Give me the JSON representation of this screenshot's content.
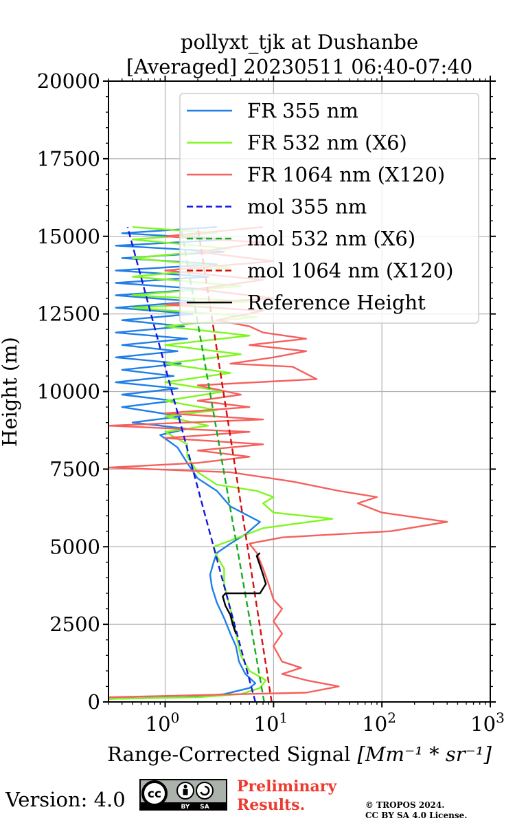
{
  "chart_data": {
    "type": "line",
    "title": "pollyxt_tjk at Dushanbe",
    "subtitle": "[Averaged] 20230511 06:40-07:40",
    "xlabel": "Range-Corrected Signal",
    "xlabel_unit": "[Mm⁻¹ * sr⁻¹]",
    "ylabel": "Height (m)",
    "xscale": "log",
    "xlim": [
      0.3,
      1000
    ],
    "ylim": [
      0,
      20000
    ],
    "x_ticks": [
      {
        "value": 1,
        "base": "10",
        "exp": "0"
      },
      {
        "value": 10,
        "base": "10",
        "exp": "1"
      },
      {
        "value": 100,
        "base": "10",
        "exp": "2"
      },
      {
        "value": 1000,
        "base": "10",
        "exp": "3"
      }
    ],
    "y_ticks": [
      0,
      2500,
      5000,
      7500,
      10000,
      12500,
      15000,
      17500,
      20000
    ],
    "grid": true,
    "legend_position": "top-right",
    "series": [
      {
        "name": "FR 355 nm",
        "color": "#1f7fe8",
        "style": "solid",
        "points": [
          [
            0.3,
            100
          ],
          [
            1.5,
            150
          ],
          [
            3.5,
            250
          ],
          [
            6,
            450
          ],
          [
            6.8,
            600
          ],
          [
            5.5,
            900
          ],
          [
            4.8,
            1300
          ],
          [
            4.5,
            1800
          ],
          [
            4,
            2200
          ],
          [
            3.5,
            2700
          ],
          [
            3,
            3200
          ],
          [
            2.7,
            3700
          ],
          [
            2.6,
            4100
          ],
          [
            2.8,
            4500
          ],
          [
            3,
            4800
          ],
          [
            4,
            5100
          ],
          [
            5.5,
            5400
          ],
          [
            7.5,
            5800
          ],
          [
            4,
            6300
          ],
          [
            3,
            6800
          ],
          [
            2,
            7200
          ],
          [
            1.6,
            7700
          ],
          [
            1.3,
            8200
          ],
          [
            0.9,
            8600
          ],
          [
            1.6,
            8800
          ],
          [
            0.5,
            9000
          ],
          [
            1.4,
            9200
          ],
          [
            0.4,
            9500
          ],
          [
            1.2,
            9700
          ],
          [
            0.4,
            9900
          ],
          [
            1.3,
            10100
          ],
          [
            0.35,
            10300
          ],
          [
            1.2,
            10500
          ],
          [
            0.4,
            10700
          ],
          [
            1.4,
            10900
          ],
          [
            0.35,
            11100
          ],
          [
            1.3,
            11300
          ],
          [
            0.4,
            11500
          ],
          [
            1.6,
            11700
          ],
          [
            0.35,
            11900
          ],
          [
            1.5,
            12100
          ],
          [
            0.4,
            12300
          ],
          [
            1.8,
            12500
          ],
          [
            0.35,
            12700
          ],
          [
            1.9,
            12900
          ],
          [
            0.35,
            13100
          ],
          [
            2.2,
            13300
          ],
          [
            0.35,
            13500
          ],
          [
            2.5,
            13700
          ],
          [
            0.35,
            13900
          ],
          [
            3,
            14100
          ],
          [
            0.4,
            14300
          ],
          [
            3.5,
            14500
          ],
          [
            0.35,
            14700
          ],
          [
            4,
            14900
          ],
          [
            0.4,
            15100
          ],
          [
            3,
            15300
          ]
        ]
      },
      {
        "name": "FR 532 nm (X6)",
        "color": "#7ef71e",
        "style": "solid",
        "points": [
          [
            0.3,
            100
          ],
          [
            2,
            150
          ],
          [
            5,
            250
          ],
          [
            7.5,
            450
          ],
          [
            8.5,
            700
          ],
          [
            6,
            1000
          ],
          [
            5,
            1500
          ],
          [
            4.5,
            2200
          ],
          [
            4.2,
            2700
          ],
          [
            3.8,
            3300
          ],
          [
            3.5,
            3800
          ],
          [
            3.5,
            4300
          ],
          [
            3,
            4700
          ],
          [
            2.8,
            5000
          ],
          [
            4,
            5200
          ],
          [
            8,
            5600
          ],
          [
            35,
            5900
          ],
          [
            10,
            6100
          ],
          [
            8,
            6400
          ],
          [
            10,
            6600
          ],
          [
            7,
            6800
          ],
          [
            3,
            7000
          ],
          [
            2,
            7400
          ],
          [
            1.6,
            7900
          ],
          [
            1.6,
            8300
          ],
          [
            1,
            8700
          ],
          [
            2.5,
            8900
          ],
          [
            1,
            9200
          ],
          [
            3,
            9400
          ],
          [
            1,
            9700
          ],
          [
            3.5,
            10000
          ],
          [
            1,
            10300
          ],
          [
            4,
            10600
          ],
          [
            1,
            10900
          ],
          [
            5,
            11200
          ],
          [
            1,
            11500
          ],
          [
            6,
            11800
          ],
          [
            1,
            12100
          ],
          [
            7,
            12400
          ],
          [
            0.5,
            12700
          ],
          [
            6,
            12900
          ],
          [
            0.5,
            13100
          ],
          [
            5,
            13400
          ],
          [
            0.5,
            13700
          ],
          [
            4,
            14000
          ],
          [
            0.5,
            14300
          ],
          [
            4,
            14600
          ],
          [
            0.5,
            14900
          ],
          [
            3,
            15100
          ],
          [
            0.5,
            15300
          ]
        ]
      },
      {
        "name": "FR 1064 nm (X120)",
        "color": "#f5605c",
        "style": "solid",
        "points": [
          [
            0.3,
            150
          ],
          [
            20,
            300
          ],
          [
            40,
            500
          ],
          [
            20,
            700
          ],
          [
            12,
            900
          ],
          [
            18,
            1100
          ],
          [
            12,
            1300
          ],
          [
            10,
            1800
          ],
          [
            12,
            2200
          ],
          [
            10,
            2600
          ],
          [
            12,
            3000
          ],
          [
            10,
            3300
          ],
          [
            9,
            3800
          ],
          [
            8,
            4300
          ],
          [
            7,
            4800
          ],
          [
            6,
            5100
          ],
          [
            12,
            5300
          ],
          [
            120,
            5500
          ],
          [
            400,
            5800
          ],
          [
            100,
            6100
          ],
          [
            60,
            6400
          ],
          [
            90,
            6600
          ],
          [
            40,
            6800
          ],
          [
            15,
            7100
          ],
          [
            4,
            7400
          ],
          [
            0.3,
            7550
          ],
          [
            2,
            7700
          ],
          [
            6,
            7900
          ],
          [
            2,
            8100
          ],
          [
            8,
            8300
          ],
          [
            1,
            8500
          ],
          [
            6,
            8700
          ],
          [
            0.3,
            8900
          ],
          [
            8,
            9100
          ],
          [
            1,
            9300
          ],
          [
            6,
            9500
          ],
          [
            2,
            9700
          ],
          [
            5,
            9900
          ],
          [
            2,
            10200
          ],
          [
            25,
            10400
          ],
          [
            15,
            10800
          ],
          [
            4,
            10900
          ],
          [
            10,
            11100
          ],
          [
            20,
            11300
          ],
          [
            6,
            11500
          ],
          [
            20,
            11700
          ],
          [
            8,
            11900
          ],
          [
            6,
            12100
          ],
          [
            3,
            12300
          ],
          [
            8,
            12600
          ],
          [
            1,
            12800
          ],
          [
            10,
            13000
          ],
          [
            2,
            13300
          ],
          [
            8,
            13600
          ],
          [
            1,
            13900
          ],
          [
            10,
            14200
          ],
          [
            2,
            14500
          ],
          [
            8,
            14800
          ],
          [
            1,
            15000
          ],
          [
            8,
            15300
          ]
        ]
      },
      {
        "name": "mol 355 nm",
        "color": "#1515e0",
        "style": "dashed",
        "points": [
          [
            6.8,
            0
          ],
          [
            0.45,
            15300
          ]
        ]
      },
      {
        "name": "mol 532 nm (X6)",
        "color": "#17ad22",
        "style": "dashed",
        "points": [
          [
            8.2,
            0
          ],
          [
            1.4,
            15300
          ]
        ]
      },
      {
        "name": "mol 1064 nm (X120)",
        "color": "#d40f0f",
        "style": "dashed",
        "points": [
          [
            9.6,
            0
          ],
          [
            2,
            15300
          ]
        ]
      },
      {
        "name": "Reference Height",
        "color": "#000000",
        "style": "solid",
        "points": [
          [
            4.5,
            2200
          ],
          [
            4.2,
            2500
          ],
          [
            4,
            2800
          ],
          [
            3.6,
            3100
          ],
          [
            3.4,
            3400
          ],
          [
            3.6,
            3500
          ],
          [
            7.5,
            3500
          ],
          [
            8.5,
            3800
          ],
          [
            8,
            4100
          ],
          [
            7.5,
            4400
          ],
          [
            7,
            4700
          ],
          [
            7.5,
            4800
          ]
        ]
      }
    ]
  },
  "footer": {
    "version": "Version: 4.0",
    "preliminary_line1": "Preliminary",
    "preliminary_line2": "Results.",
    "copyright_line1": "© TROPOS 2024.",
    "copyright_line2": "CC BY SA 4.0 License.",
    "cc_badge_labels": {
      "cc": "cc",
      "by": "BY",
      "sa": "SA"
    }
  }
}
